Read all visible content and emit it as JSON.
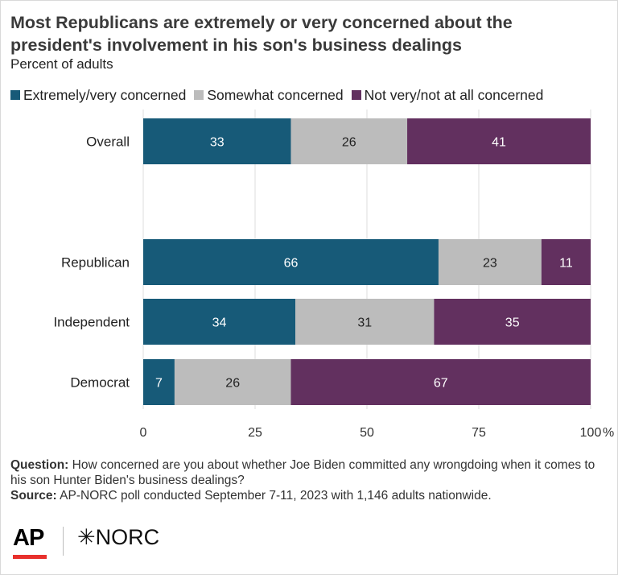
{
  "title": "Most Republicans are extremely or very concerned about the president's involvement in his son's business dealings",
  "subtitle": "Percent of adults",
  "colors": {
    "extremely_very": "#175a78",
    "somewhat": "#bcbcbc",
    "not_very": "#62305f"
  },
  "chart_data": {
    "type": "bar",
    "orientation": "horizontal",
    "stacked": true,
    "categories": [
      "Overall",
      "Republican",
      "Independent",
      "Democrat"
    ],
    "series": [
      {
        "name": "Extremely/very concerned",
        "values": [
          33,
          66,
          34,
          7
        ]
      },
      {
        "name": "Somewhat concerned",
        "values": [
          26,
          23,
          31,
          26
        ]
      },
      {
        "name": "Not very/not at all concerned",
        "values": [
          41,
          11,
          35,
          67
        ]
      }
    ],
    "xlim": [
      0,
      100
    ],
    "xticks": [
      "0",
      "25",
      "50",
      "75",
      "100"
    ],
    "x_unit": "%",
    "grid": true,
    "legend": "top"
  },
  "notes": {
    "question_label": "Question:",
    "question_text": "How concerned are you about whether Joe Biden committed any wrongdoing when it comes to his son Hunter Biden's business dealings?",
    "source_label": "Source:",
    "source_text": "AP-NORC poll conducted September 7-11, 2023 with 1,146 adults nationwide."
  },
  "logos": {
    "ap": "AP",
    "norc": "NORC"
  }
}
